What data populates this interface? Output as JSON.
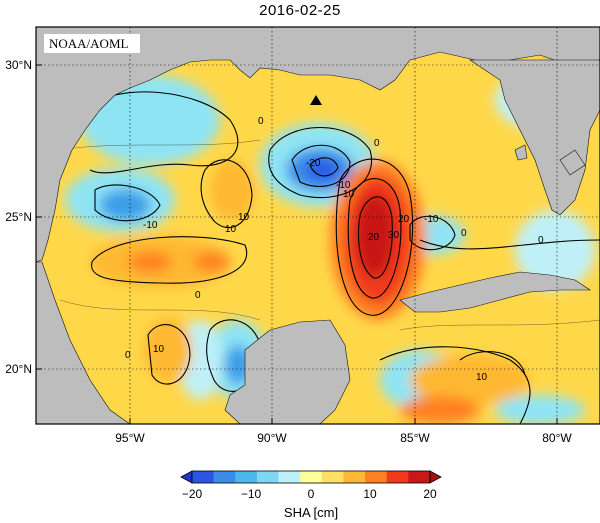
{
  "title": "2016-02-25",
  "credit": "NOAA/AOML",
  "map": {
    "lat_ticks": [
      "30°N",
      "25°N",
      "20°N"
    ],
    "lon_ticks": [
      "95°W",
      "90°W",
      "85°W",
      "80°W"
    ],
    "contour_labels": [
      "0",
      "-10",
      "-20",
      "-10",
      "0",
      "10",
      "10",
      "20",
      "30",
      "20",
      "10",
      "-10",
      "0",
      "0",
      "10",
      "0",
      "10",
      "0"
    ],
    "marker": "triangle-marker",
    "colors": {
      "land": "#bdbdbd",
      "ocean_border": "#000000"
    }
  },
  "colorbar": {
    "ticks": [
      "−20",
      "−10",
      "0",
      "10",
      "20"
    ],
    "units": "SHA [cm]",
    "colors": [
      "#2b55e6",
      "#3a8de8",
      "#4db6ee",
      "#7fd8f2",
      "#bff0f8",
      "#ffff99",
      "#ffe066",
      "#ffb833",
      "#ff8020",
      "#f03a1a",
      "#c81818"
    ]
  }
}
